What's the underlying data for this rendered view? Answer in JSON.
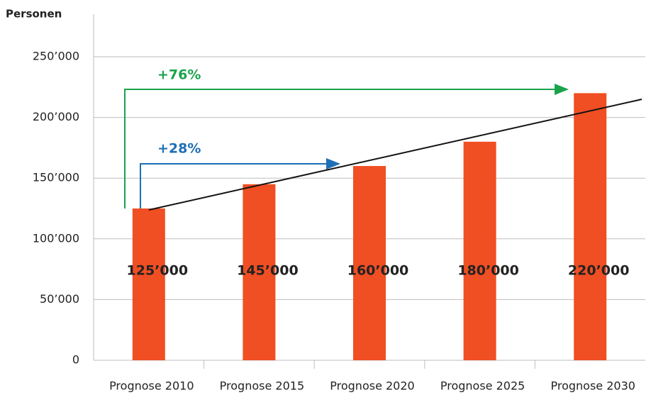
{
  "chart_data": {
    "type": "bar",
    "y_axis_label": "Personen",
    "categories": [
      "Prognose 2010",
      "Prognose 2015",
      "Prognose 2020",
      "Prognose 2025",
      "Prognose 2030"
    ],
    "values": [
      125000,
      145000,
      160000,
      180000,
      220000
    ],
    "value_labels": [
      "125’000",
      "145’000",
      "160’000",
      "180’000",
      "220’000"
    ],
    "color": "#f04e23",
    "ylim": [
      0,
      250000
    ],
    "yticks": [
      0,
      {
        "value": 50000,
        "label": "50’000"
      },
      {
        "value": 100000,
        "label": "100’000"
      },
      {
        "value": 150000,
        "label": "150’000"
      },
      {
        "value": 200000,
        "label": "200’000"
      },
      {
        "value": 250000,
        "label": "250’000"
      }
    ],
    "grid": true,
    "annotations": [
      "+76%",
      "+28%"
    ]
  }
}
